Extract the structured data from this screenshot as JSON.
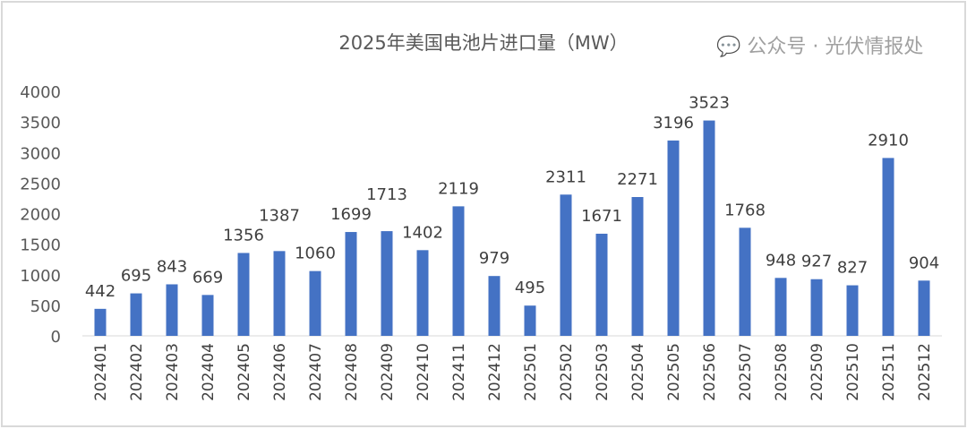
{
  "chart_data": {
    "type": "bar",
    "title": "2025年美国电池片进口量（MW）",
    "categories": [
      "202401",
      "202402",
      "202403",
      "202404",
      "202405",
      "202406",
      "202407",
      "202408",
      "202409",
      "202410",
      "202411",
      "202412",
      "202501",
      "202502",
      "202503",
      "202504",
      "202505",
      "202506",
      "202507",
      "202508",
      "202509",
      "202510",
      "202511",
      "202512"
    ],
    "values": [
      442,
      695,
      843,
      669,
      1356,
      1387,
      1060,
      1699,
      1713,
      1402,
      2119,
      979,
      495,
      2311,
      1671,
      2271,
      3196,
      3523,
      1768,
      948,
      927,
      827,
      2910,
      904
    ],
    "ylim": [
      0,
      4000
    ],
    "yticks": [
      0,
      500,
      1000,
      1500,
      2000,
      2500,
      3000,
      3500,
      4000
    ],
    "grid": false,
    "legend": "none",
    "bar_color": "#4472c4"
  },
  "watermark": "公众号 · 光伏情报处"
}
